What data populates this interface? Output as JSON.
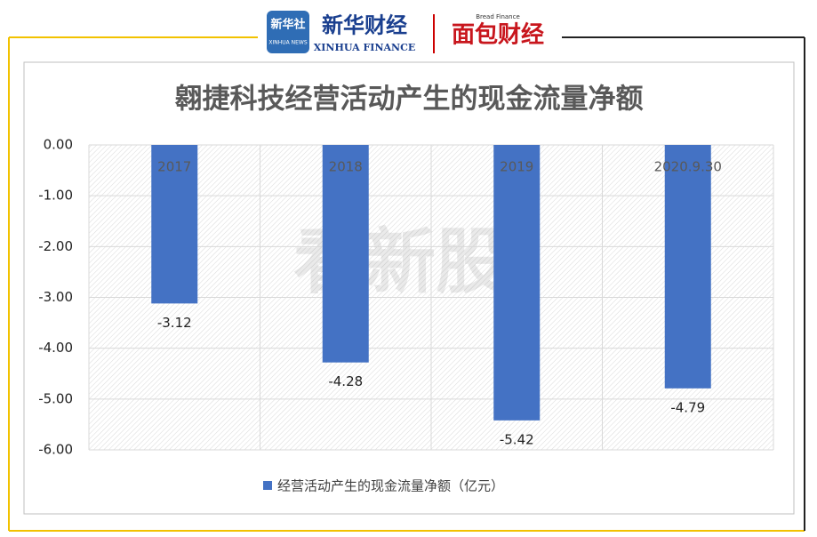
{
  "header": {
    "agency": "新华社",
    "agency_en": "XINHUA NEWS",
    "brand": "新华财经",
    "brand_en": "XINHUA FINANCE",
    "partner": "面包财经",
    "partner_en": "Bread Finance",
    "watermark": "看新股"
  },
  "chart_data": {
    "type": "bar",
    "title": "翱捷科技经营活动产生的现金流量净额",
    "categories": [
      "2017",
      "2018",
      "2019",
      "2020.9.30"
    ],
    "series": [
      {
        "name": "经营活动产生的现金流量净额（亿元）",
        "color": "#4472c4",
        "values": [
          -3.12,
          -4.28,
          -5.42,
          -4.79
        ]
      }
    ],
    "ylim": [
      -6,
      0
    ],
    "yticks": [
      {
        "value": 0,
        "label": "0.00"
      },
      {
        "value": -1,
        "label": "-1.00"
      },
      {
        "value": -2,
        "label": "-2.00"
      },
      {
        "value": -3,
        "label": "-3.00"
      },
      {
        "value": -4,
        "label": "-4.00"
      },
      {
        "value": -5,
        "label": "-5.00"
      },
      {
        "value": -6,
        "label": "-6.00"
      }
    ],
    "grid": true,
    "legend": "bottom"
  }
}
